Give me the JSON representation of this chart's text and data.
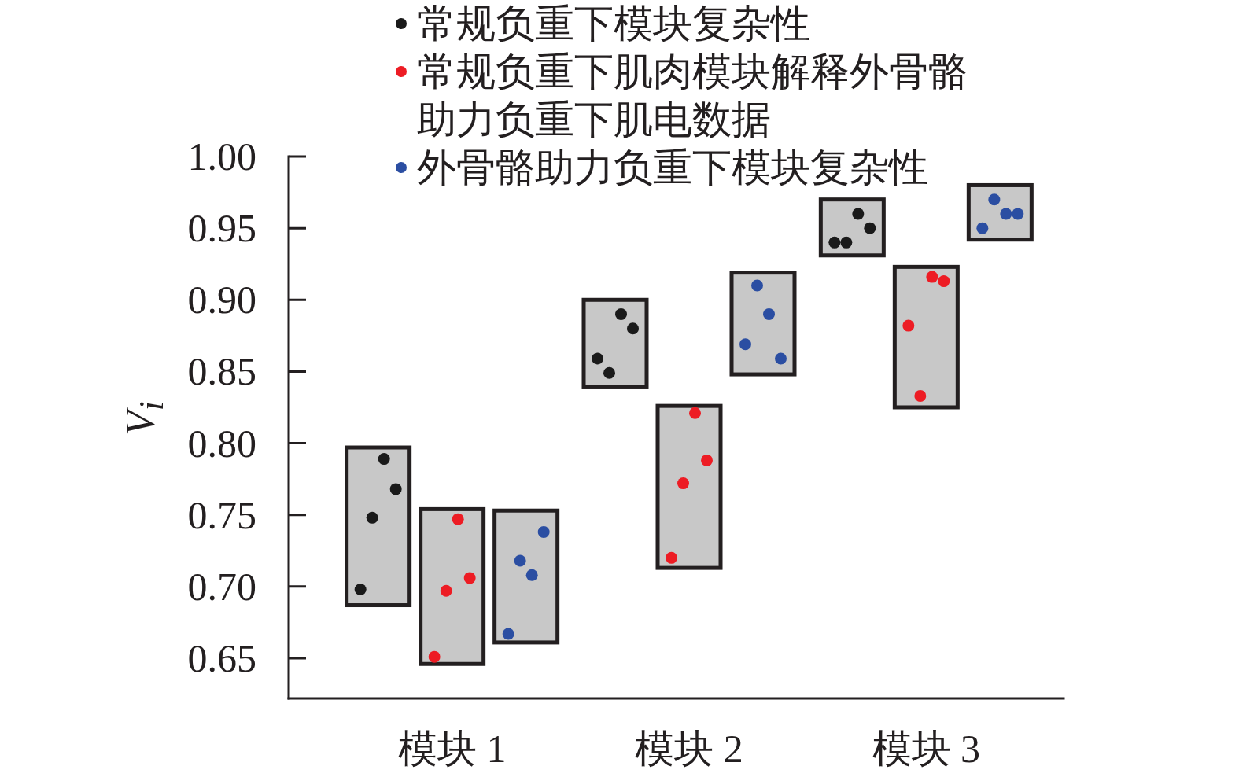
{
  "chart_data": {
    "type": "scatter",
    "ylabel": "V$_{i}$",
    "categories": [
      "模块 1",
      "模块 2",
      "模块 3"
    ],
    "ylim": [
      0.622,
      1.0
    ],
    "yticks": [
      0.65,
      {
        "value": 0.7,
        "label": "0.70"
      },
      0.75,
      {
        "value": 0.8,
        "label": "0.80"
      },
      0.85,
      {
        "value": 0.9,
        "label": "0.90"
      },
      0.95,
      {
        "value": 1.0,
        "label": "1.00"
      }
    ],
    "legend": "top",
    "marker": "circle",
    "series": [
      {
        "type": "bar",
        "color": "#c8c8c8",
        "base": [
          0.687,
          0.839,
          0.931
        ],
        "values": [
          0.11,
          0.061,
          0.039
        ]
      },
      {
        "type": "bar",
        "color": "#c8c8c8",
        "base": [
          0.646,
          0.713,
          0.825
        ],
        "values": [
          0.108,
          0.113,
          0.098
        ]
      },
      {
        "type": "bar",
        "color": "#c8c8c8",
        "base": [
          0.661,
          0.848,
          0.942
        ],
        "values": [
          0.092,
          0.071,
          0.038
        ]
      },
      {
        "name": "常规负重下模块复杂性",
        "color": "#1a1a1a",
        "x": [
          "模块 1",
          "模块 1",
          "模块 1",
          "模块 1",
          "模块 2",
          "模块 2",
          "模块 2",
          "模块 2",
          "模块 3",
          "模块 3",
          "模块 3",
          "模块 3"
        ],
        "values": [
          0.698,
          0.748,
          0.789,
          0.768,
          0.859,
          0.849,
          0.89,
          0.88,
          0.94,
          0.94,
          0.96,
          0.95
        ]
      },
      {
        "name": "常规负重下肌肉模块解释外骨骼助力负重下肌电数据",
        "color": "#ed1c24",
        "x": [
          "模块 1",
          "模块 1",
          "模块 1",
          "模块 1",
          "模块 2",
          "模块 2",
          "模块 2",
          "模块 2",
          "模块 3",
          "模块 3",
          "模块 3",
          "模块 3"
        ],
        "values": [
          0.651,
          0.697,
          0.747,
          0.706,
          0.72,
          0.772,
          0.821,
          0.788,
          0.882,
          0.833,
          0.916,
          0.913
        ]
      },
      {
        "name": "外骨骼助力负重下模块复杂性",
        "color": "#2b4ea2",
        "x": [
          "模块 1",
          "模块 1",
          "模块 1",
          "模块 1",
          "模块 2",
          "模块 2",
          "模块 2",
          "模块 2",
          "模块 3",
          "模块 3",
          "模块 3",
          "模块 3"
        ],
        "values": [
          0.667,
          0.718,
          0.708,
          0.738,
          0.869,
          0.91,
          0.89,
          0.859,
          0.95,
          0.97,
          0.96,
          0.96
        ]
      }
    ]
  }
}
